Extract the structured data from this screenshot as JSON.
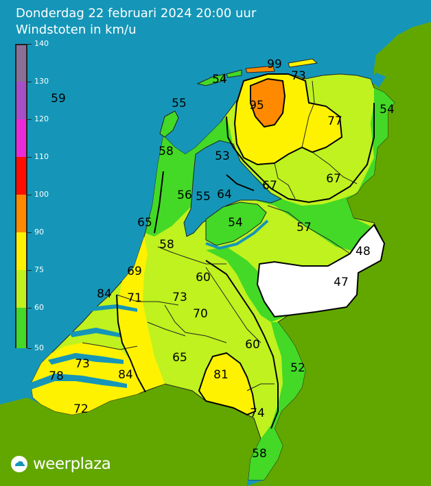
{
  "title": {
    "line1": "Donderdag 22 februari 2024 20:00 uur",
    "line2": "Windstoten in km/u"
  },
  "legend": {
    "ticks": [
      "140",
      "130",
      "120",
      "110",
      "100",
      "90",
      "75",
      "60",
      "50"
    ],
    "bands": [
      {
        "from": 130,
        "to": 140,
        "color": "#8a6f96"
      },
      {
        "from": 120,
        "to": 130,
        "color": "#a64fc8"
      },
      {
        "from": 110,
        "to": 120,
        "color": "#ec2bd8"
      },
      {
        "from": 100,
        "to": 110,
        "color": "#ff0d00"
      },
      {
        "from": 90,
        "to": 100,
        "color": "#ff8a00"
      },
      {
        "from": 75,
        "to": 90,
        "color": "#fff200"
      },
      {
        "from": 60,
        "to": 75,
        "color": "#bff21e"
      },
      {
        "from": 50,
        "to": 60,
        "color": "#43d926"
      }
    ]
  },
  "colors": {
    "sea": "#1596b8",
    "foreign_land": "#62a700",
    "green_50_60": "#43d926",
    "lime_60_75": "#bff21e",
    "yellow_75_90": "#fff200",
    "orange_90_100": "#ff8a00",
    "below_50": "#ffffff"
  },
  "observations": [
    {
      "id": "sea-west",
      "value": "59"
    },
    {
      "id": "ameland",
      "value": "99"
    },
    {
      "id": "vlieland",
      "value": "54"
    },
    {
      "id": "schiermonnikoog",
      "value": "73"
    },
    {
      "id": "texel",
      "value": "55"
    },
    {
      "id": "leeuwarden",
      "value": "95"
    },
    {
      "id": "nieuw-beerta",
      "value": "54"
    },
    {
      "id": "eelde",
      "value": "77"
    },
    {
      "id": "den-helder",
      "value": "58"
    },
    {
      "id": "stavoren",
      "value": "53"
    },
    {
      "id": "hoogeveen",
      "value": "67"
    },
    {
      "id": "hoogeveen-east",
      "value": "67"
    },
    {
      "id": "wijdenes",
      "value": "56"
    },
    {
      "id": "houtribdijk",
      "value": "55"
    },
    {
      "id": "lelystad",
      "value": "64"
    },
    {
      "id": "ijmuiden",
      "value": "65"
    },
    {
      "id": "dronten",
      "value": "54"
    },
    {
      "id": "hengelo-north",
      "value": "57"
    },
    {
      "id": "schiphol",
      "value": "58"
    },
    {
      "id": "twenthe",
      "value": "48"
    },
    {
      "id": "valkenburg",
      "value": "69"
    },
    {
      "id": "deelen",
      "value": "60"
    },
    {
      "id": "hupsel",
      "value": "47"
    },
    {
      "id": "hoek-van-holland",
      "value": "84"
    },
    {
      "id": "rotterdam",
      "value": "71"
    },
    {
      "id": "de-bilt",
      "value": "73"
    },
    {
      "id": "herwijnen",
      "value": "70"
    },
    {
      "id": "volkel",
      "value": "60"
    },
    {
      "id": "vlissingen-north",
      "value": "73"
    },
    {
      "id": "woensdrecht",
      "value": "84"
    },
    {
      "id": "gilze-rijen",
      "value": "65"
    },
    {
      "id": "venlo",
      "value": "52"
    },
    {
      "id": "eindhoven",
      "value": "81"
    },
    {
      "id": "cadzand",
      "value": "78"
    },
    {
      "id": "westdorpe",
      "value": "72"
    },
    {
      "id": "ell",
      "value": "74"
    },
    {
      "id": "maastricht",
      "value": "58"
    }
  ],
  "logo": {
    "icon": "weerplaza-cloud-icon",
    "text": "weerplaza"
  }
}
